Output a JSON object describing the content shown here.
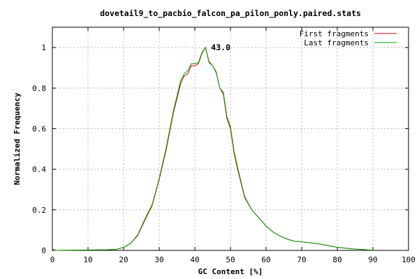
{
  "chart_data": {
    "type": "line",
    "title": "dovetail9_to_pacbio_falcon_pa_pilon_ponly.paired.stats",
    "xlabel": "GC Content [%]",
    "ylabel": "Normalized Frequency",
    "xlim": [
      0,
      100
    ],
    "ylim": [
      0,
      1.1
    ],
    "xticks": [
      0,
      10,
      20,
      30,
      40,
      50,
      60,
      70,
      80,
      90,
      100
    ],
    "yticks": [
      0,
      0.2,
      0.4,
      0.6,
      0.8,
      1
    ],
    "ytick_labels": [
      "0",
      "0.2",
      "0.4",
      "0.6",
      "0.8",
      "1"
    ],
    "grid": true,
    "legend_position": "top-right",
    "annotation": {
      "text": "43.0",
      "x": 43.0,
      "y": 1.0
    },
    "series": [
      {
        "name": "First fragments",
        "color": "#cc0000",
        "x": [
          0,
          1,
          10,
          15,
          18,
          20,
          22,
          24,
          26,
          28,
          30,
          32,
          34,
          36,
          37,
          38,
          39,
          40,
          41,
          42,
          43,
          44,
          45,
          46,
          47,
          48,
          49,
          50,
          51,
          52,
          54,
          56,
          58,
          60,
          62,
          64,
          66,
          68,
          70,
          72,
          75,
          78,
          80,
          84,
          88,
          90
        ],
        "y": [
          0.005,
          0,
          0.002,
          0.003,
          0.005,
          0.015,
          0.035,
          0.075,
          0.15,
          0.22,
          0.35,
          0.5,
          0.68,
          0.82,
          0.86,
          0.87,
          0.91,
          0.91,
          0.92,
          0.97,
          1.0,
          0.93,
          0.91,
          0.88,
          0.8,
          0.77,
          0.65,
          0.6,
          0.48,
          0.4,
          0.26,
          0.2,
          0.16,
          0.12,
          0.09,
          0.07,
          0.055,
          0.045,
          0.042,
          0.038,
          0.032,
          0.022,
          0.015,
          0.008,
          0.003,
          0.001
        ]
      },
      {
        "name": "Last fragments",
        "color": "#00a000",
        "x": [
          0,
          1,
          10,
          15,
          18,
          20,
          22,
          24,
          26,
          28,
          30,
          32,
          34,
          36,
          37,
          38,
          39,
          40,
          41,
          42,
          43,
          44,
          45,
          46,
          47,
          48,
          49,
          50,
          51,
          52,
          54,
          56,
          58,
          60,
          62,
          64,
          66,
          68,
          70,
          72,
          75,
          78,
          80,
          84,
          88,
          90
        ],
        "y": [
          0.005,
          0,
          0.002,
          0.003,
          0.005,
          0.015,
          0.035,
          0.078,
          0.155,
          0.225,
          0.355,
          0.51,
          0.69,
          0.835,
          0.87,
          0.885,
          0.92,
          0.92,
          0.925,
          0.975,
          1.0,
          0.925,
          0.91,
          0.875,
          0.8,
          0.78,
          0.66,
          0.61,
          0.49,
          0.41,
          0.265,
          0.2,
          0.16,
          0.12,
          0.09,
          0.07,
          0.055,
          0.045,
          0.042,
          0.038,
          0.032,
          0.022,
          0.015,
          0.008,
          0.003,
          0.001
        ]
      }
    ]
  }
}
